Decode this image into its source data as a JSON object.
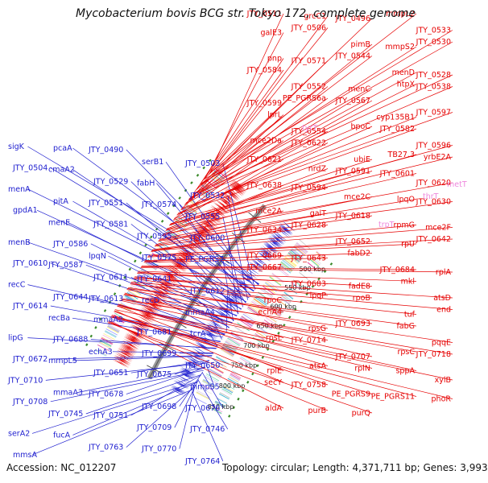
{
  "title": "Mycobacterium bovis BCG str. Tokyo 172, complete genome",
  "footer": {
    "accession": "Accession: NC_012207",
    "summary": "Topology: circular; Length: 4,371,711 bp; Genes: 3,993"
  },
  "colors": {
    "forward": "#e60000",
    "reverse": "#1e1ecf",
    "rna": "#ee88dd",
    "backbone": "#888888",
    "tick": "#3a8a2a"
  },
  "ticks": [
    "500 kbp",
    "550 kbp",
    "600 kbp",
    "650 kbp",
    "700 kbp",
    "750 kbp",
    "800 kbp",
    "850 kbp"
  ],
  "labels_reverse": [
    "sigK",
    "pcaA",
    "JTY_0490",
    "serB1",
    "JTY_0503",
    "JTY_0504",
    "cmaA2",
    "JTY_0529",
    "fabH",
    "JTY_0532",
    "menA",
    "pitA",
    "JTY_0551",
    "JTY_0574",
    "JTY_0555",
    "gpdA1",
    "menE",
    "JTY_0581",
    "JTY_0595",
    "JTY_0600",
    "menB",
    "JTY_0586",
    "lpqN",
    "JTY_0575",
    "PE_PGRS7",
    "JTY_0610",
    "JTY_0587",
    "JTY_0611",
    "JTY_0641",
    "JTY_0612",
    "recC",
    "JTY_0644",
    "JTY_0613",
    "recD",
    "mmaA4",
    "JTY_0614",
    "recBa",
    "mmaA2",
    "JTY_0681",
    "tcrA",
    "lipG",
    "JTY_0688",
    "echA3",
    "JTY_0699",
    "JTY_0650",
    "JTY_0672",
    "mmpL5",
    "JTY_0651",
    "JTY_0675",
    "mmpS5",
    "JTY_0710",
    "mmaA3",
    "JTY_0678",
    "JTY_0698",
    "JTY_0676",
    "JTY_0708",
    "JTY_0745",
    "JTY_0751",
    "JTY_0709",
    "JTY_0746",
    "serA2",
    "fucA",
    "JTY_0763",
    "JTY_0770",
    "JTY_0764",
    "mmsA"
  ],
  "labels_forward": [
    "JTY_0511",
    "grcC1",
    "JTY_0496",
    "mmpL2",
    "JTY_0533",
    "galE3",
    "JTY_0506",
    "pimB",
    "mmpS2",
    "JTY_0530",
    "pnp",
    "JTY_0571",
    "JTY_0544",
    "menD",
    "JTY_0528",
    "JTY_0584",
    "JTY_0552",
    "menC",
    "htpX",
    "JTY_0538",
    "JTY_0599",
    "PE_PGRS6a",
    "JTY_0567",
    "cyp135B1",
    "JTY_0597",
    "lprL",
    "JTY_0554",
    "bpoC",
    "JTY_0582",
    "JTY_0596",
    "mce2Da",
    "JTY_0622",
    "ubiE",
    "TB27.3",
    "yrbE2A",
    "JTY_0621",
    "nrdZ",
    "JTY_0591",
    "JTY_0601",
    "JTY_0620",
    "JTY_0638",
    "JTY_0594",
    "mce2C",
    "lpqO",
    "JTY_0630",
    "mce2A",
    "galT",
    "JTY_0618",
    "rpmG",
    "mce2F",
    "JTY_0634",
    "JTY_0628",
    "JTY_0652",
    "rpU",
    "JTY_0642",
    "JTY_0669",
    "JTY_0643",
    "fabD2",
    "JTY_0684",
    "rplA",
    "JTY_0667",
    "JTY_0683",
    "fadE8",
    "mkl",
    "atsD",
    "rpoC",
    "lpqP",
    "rpoB",
    "tuf",
    "end",
    "echA4",
    "rpsG",
    "JTY_0693",
    "fabG",
    "pqqE",
    "rpsL",
    "JTY_0714",
    "JTY_0707",
    "rpsC",
    "JTY_0718",
    "rplE",
    "atsA",
    "rplN",
    "sppA",
    "xylB",
    "secY",
    "JTY_0758",
    "PE_PGRS9",
    "PE_PGRS11",
    "phoR",
    "aldA",
    "purB",
    "purQ"
  ],
  "labels_rna": [
    "tyrT",
    "metT",
    "thrT",
    "trpT"
  ]
}
